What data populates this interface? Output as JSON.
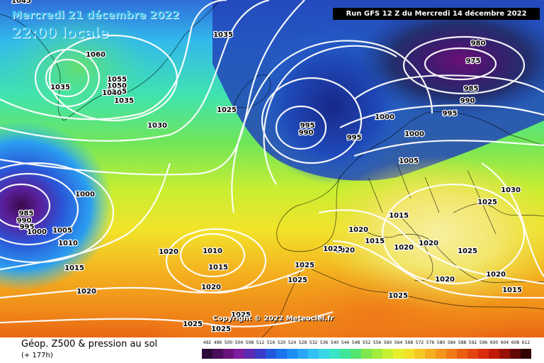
{
  "header": {
    "date": "Mercredi 21 décembre 2022",
    "time": "22:00 locale",
    "run": "Run GFS 12 Z du Mercredi 14 décembre 2022"
  },
  "copyright": "Copyright © 2022 Meteociel.fr",
  "footer": {
    "title": "Géop. Z500 & pression au sol",
    "subtitle": "(+ 177h)"
  },
  "legend": {
    "values": [
      "492",
      "496",
      "500",
      "504",
      "508",
      "512",
      "516",
      "520",
      "524",
      "528",
      "532",
      "536",
      "540",
      "544",
      "548",
      "552",
      "556",
      "560",
      "564",
      "568",
      "572",
      "576",
      "580",
      "584",
      "588",
      "592",
      "596",
      "600",
      "604",
      "608",
      "612"
    ],
    "colors": [
      "#2a0a3a",
      "#4a0e5a",
      "#6a127c",
      "#7d1da0",
      "#5a2bb2",
      "#3a3bc8",
      "#2458dc",
      "#1a74ec",
      "#1e8ef2",
      "#2aa6f4",
      "#33c0f2",
      "#3ad6e6",
      "#39e4c4",
      "#3ee49a",
      "#55e470",
      "#7ee84c",
      "#a4ec3c",
      "#c8f032",
      "#e6f02a",
      "#f4e22a",
      "#f4c824",
      "#f4ae20",
      "#f4941c",
      "#f07a18",
      "#ec5e14",
      "#e44410",
      "#d82c0c",
      "#c01a08",
      "#961006",
      "#640804",
      "#300202"
    ]
  },
  "pressure_labels": [
    {
      "text": "1045"
    },
    {
      "text": "1035"
    },
    {
      "text": "1060"
    },
    {
      "text": "1055"
    },
    {
      "text": "1050"
    },
    {
      "text": "1045"
    },
    {
      "text": "1040"
    },
    {
      "text": "1035"
    },
    {
      "text": "1035"
    },
    {
      "text": "1030"
    },
    {
      "text": "1025"
    },
    {
      "text": "995"
    },
    {
      "text": "990"
    },
    {
      "text": "1000"
    },
    {
      "text": "995"
    },
    {
      "text": "1000"
    },
    {
      "text": "980"
    },
    {
      "text": "975"
    },
    {
      "text": "985"
    },
    {
      "text": "990"
    },
    {
      "text": "995"
    },
    {
      "text": "1005"
    },
    {
      "text": "1000"
    },
    {
      "text": "985"
    },
    {
      "text": "990"
    },
    {
      "text": "995"
    },
    {
      "text": "1000"
    },
    {
      "text": "1005"
    },
    {
      "text": "1010"
    },
    {
      "text": "1015"
    },
    {
      "text": "1020"
    },
    {
      "text": "1020"
    },
    {
      "text": "1010"
    },
    {
      "text": "1015"
    },
    {
      "text": "1020"
    },
    {
      "text": "1025"
    },
    {
      "text": "1025"
    },
    {
      "text": "1025"
    },
    {
      "text": "1015"
    },
    {
      "text": "1020"
    },
    {
      "text": "1015"
    },
    {
      "text": "1020"
    },
    {
      "text": "1020"
    },
    {
      "text": "1025"
    },
    {
      "text": "1025"
    },
    {
      "text": "1030"
    },
    {
      "text": "1025"
    },
    {
      "text": "1020"
    },
    {
      "text": "1015"
    },
    {
      "text": "1020"
    },
    {
      "text": "1020"
    },
    {
      "text": "1025"
    },
    {
      "text": "1025"
    },
    {
      "text": "1025"
    }
  ]
}
